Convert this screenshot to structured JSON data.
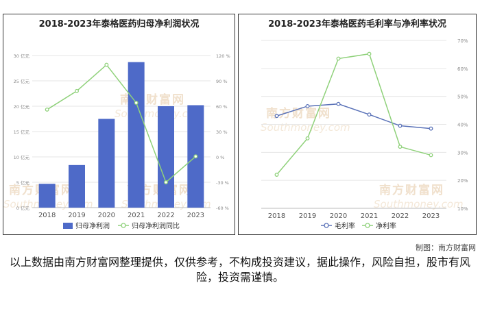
{
  "chart_data": [
    {
      "type": "bar",
      "title": "2018-2023年泰格医药归母净利润状况",
      "categories": [
        "2018",
        "2019",
        "2020",
        "2021",
        "2022",
        "2023"
      ],
      "series": [
        {
          "name": "归母净利润",
          "type": "bar",
          "axis": "left",
          "values": [
            4.7,
            8.4,
            17.5,
            28.7,
            20.0,
            20.2
          ],
          "color": "#4e6ac8"
        },
        {
          "name": "归母净利润同比",
          "type": "line",
          "axis": "right",
          "values": [
            56,
            78,
            109,
            64,
            -30,
            0.6
          ],
          "color": "#8fd17a"
        }
      ],
      "left_axis": {
        "ticks": [
          "0 亿元",
          "5 亿元",
          "10 亿元",
          "15 亿元",
          "20 亿元",
          "25 亿元",
          "30 亿元"
        ],
        "ylim": [
          0,
          30
        ]
      },
      "right_axis": {
        "ticks": [
          "-60 %",
          "-30 %",
          "0 %",
          "30 %",
          "60 %",
          "90 %",
          "120 %"
        ],
        "ylim": [
          -60,
          120
        ]
      },
      "legend": "bottom",
      "grid": true
    },
    {
      "type": "line",
      "title": "2018-2023年泰格医药毛利率与净利率状况",
      "categories": [
        "2018",
        "2019",
        "2020",
        "2021",
        "2022",
        "2023"
      ],
      "series": [
        {
          "name": "毛利率",
          "values": [
            43,
            46.5,
            47.3,
            43.5,
            39.5,
            38.5
          ],
          "color": "#5a72b8"
        },
        {
          "name": "净利率",
          "values": [
            22,
            35,
            63.5,
            65.2,
            32,
            29
          ],
          "color": "#8fd17a"
        }
      ],
      "right_axis": {
        "ticks": [
          "10%",
          "20%",
          "30%",
          "40%",
          "50%",
          "60%",
          "70%"
        ],
        "ylim": [
          10,
          70
        ]
      },
      "legend": "bottom",
      "grid": true
    }
  ],
  "watermark": {
    "cn": "南方财富网",
    "en": "Southmoney.com"
  },
  "credit": "制图：南方财富网",
  "disclaimer": "以上数据由南方财富网整理提供，仅供参考，不构成投资建议，据此操作，风险自担，股市有风险，投资需谨慎。"
}
